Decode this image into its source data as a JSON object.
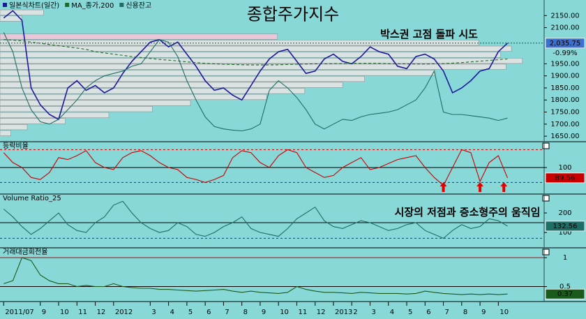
{
  "chart_data": [
    {
      "type": "line",
      "title": "종합주가지수",
      "annotation": "박스권 고점 돌파 시도",
      "x": [
        0,
        0.5,
        1,
        1.5,
        2,
        2.5,
        3,
        3.5,
        4,
        4.5,
        5,
        5.5,
        6,
        6.5,
        7,
        7.5,
        8,
        8.5,
        9,
        9.5,
        10,
        10.5,
        11,
        11.5,
        12,
        12.5,
        13,
        13.5,
        14,
        14.5,
        15,
        15.5,
        16,
        16.5,
        17,
        17.5,
        18,
        18.5,
        19,
        19.5,
        20,
        20.5,
        21,
        21.5,
        22,
        22.5,
        23,
        23.5,
        24,
        24.5,
        25,
        25.5,
        26,
        26.5,
        27,
        27.5
      ],
      "xlim": [
        -0.2,
        29.5
      ],
      "ylim": [
        1630,
        2200
      ],
      "yticks": [
        {
          "value": 2150,
          "label": "2150.00"
        },
        {
          "value": 2100,
          "label": "2100.00"
        },
        {
          "value": 1950,
          "label": "1950.00"
        },
        {
          "value": 1900,
          "label": "1900.00"
        },
        {
          "value": 1850,
          "label": "1850.00"
        },
        {
          "value": 1800,
          "label": "1800.00"
        },
        {
          "value": 1750,
          "label": "1750.00"
        },
        {
          "value": 1700,
          "label": "1700.00"
        },
        {
          "value": 1650,
          "label": "1650.00"
        }
      ],
      "series": [
        {
          "name": "일본식차트(일간)",
          "color": "#1a1a9a",
          "last_label": "2,035.75",
          "change_label": "-0.99%",
          "values": [
            2140,
            2170,
            2130,
            1850,
            1780,
            1740,
            1720,
            1850,
            1880,
            1840,
            1860,
            1830,
            1850,
            1910,
            1960,
            2000,
            2040,
            2050,
            2020,
            2040,
            1990,
            1940,
            1880,
            1840,
            1850,
            1820,
            1800,
            1860,
            1920,
            1970,
            2000,
            2010,
            1960,
            1910,
            1920,
            1970,
            1990,
            1960,
            1950,
            1980,
            2020,
            2000,
            1990,
            1940,
            1930,
            1980,
            1990,
            1970,
            1920,
            1830,
            1850,
            1880,
            1920,
            1930,
            2000,
            2035.75
          ]
        },
        {
          "name": "MA_종가,200",
          "color": "#1f6b2a",
          "dash": true,
          "values": [
            2050,
            2048,
            2045,
            2040,
            2035,
            2030,
            2025,
            2020,
            2015,
            2010,
            2000,
            1995,
            1990,
            1985,
            1980,
            1976,
            1972,
            1968,
            1965,
            1962,
            1958,
            1955,
            1952,
            1950,
            1948,
            1947,
            1946,
            1945,
            1945,
            1945,
            1946,
            1947,
            1948,
            1949,
            1950,
            1950,
            1951,
            1951,
            1952,
            1952,
            1952,
            1952,
            1951,
            1950,
            1950,
            1949,
            1949,
            1950,
            1951,
            1953,
            1955,
            1958,
            1961,
            1964,
            1967,
            1970
          ]
        },
        {
          "name": "신용잔고",
          "color": "#1e6e66",
          "values": [
            2080,
            2000,
            1850,
            1760,
            1710,
            1700,
            1720,
            1760,
            1800,
            1850,
            1880,
            1900,
            1910,
            1920,
            1940,
            1950,
            2000,
            2050,
            2040,
            1980,
            1880,
            1800,
            1730,
            1690,
            1680,
            1675,
            1672,
            1680,
            1700,
            1840,
            1880,
            1850,
            1810,
            1760,
            1700,
            1680,
            1700,
            1720,
            1715,
            1730,
            1740,
            1745,
            1750,
            1760,
            1780,
            1800,
            1850,
            1920,
            1750,
            1740,
            1740,
            1735,
            1730,
            1725,
            1715,
            1725
          ]
        }
      ],
      "volume_profile": {
        "bins": [
          1650,
          1675,
          1700,
          1725,
          1750,
          1775,
          1800,
          1825,
          1850,
          1875,
          1900,
          1925,
          1950,
          1975,
          2000,
          2025,
          2050,
          2075,
          2100,
          2125,
          2150,
          2175
        ],
        "values": [
          2,
          5,
          12,
          20,
          28,
          35,
          49,
          56,
          63,
          67,
          80,
          93,
          96,
          92,
          94,
          88,
          51,
          0,
          0,
          4,
          8
        ],
        "color": "#e4e4e4",
        "highlight_index": 16,
        "highlight_color": "#f6c4d8"
      }
    },
    {
      "type": "line",
      "title": "등락비율",
      "x": [
        0,
        0.5,
        1,
        1.5,
        2,
        2.5,
        3,
        3.5,
        4,
        4.5,
        5,
        5.5,
        6,
        6.5,
        7,
        7.5,
        8,
        8.5,
        9,
        9.5,
        10,
        10.5,
        11,
        11.5,
        12,
        12.5,
        13,
        13.5,
        14,
        14.5,
        15,
        15.5,
        16,
        16.5,
        17,
        17.5,
        18,
        18.5,
        19,
        19.5,
        20,
        20.5,
        21,
        21.5,
        22,
        22.5,
        23,
        23.5,
        24,
        24.5,
        25,
        25.5,
        26,
        26.5,
        27,
        27.5
      ],
      "xlim": [
        -0.2,
        29.5
      ],
      "ylim": [
        74,
        119
      ],
      "yticks": [
        100
      ],
      "hlines": [
        {
          "value": 118,
          "color": "#c00000",
          "dash": true
        },
        {
          "value": 100,
          "color": "#000000",
          "dash": false
        },
        {
          "value": 85,
          "color": "#1030d0",
          "dash": true
        }
      ],
      "arrows": [
        24,
        26,
        27.3
      ],
      "series": [
        {
          "name": "등락비율",
          "color": "#c80000",
          "last_label": "89.56",
          "values": [
            115,
            105,
            100,
            90,
            88,
            95,
            110,
            108,
            112,
            117,
            105,
            100,
            98,
            110,
            115,
            117,
            112,
            105,
            100,
            98,
            90,
            88,
            85,
            88,
            92,
            110,
            117,
            115,
            105,
            100,
            112,
            118,
            115,
            100,
            95,
            90,
            92,
            100,
            105,
            110,
            98,
            100,
            104,
            108,
            110,
            112,
            100,
            90,
            82,
            100,
            118,
            115,
            86,
            105,
            112,
            89.56
          ]
        }
      ]
    },
    {
      "type": "line",
      "title": "Volume Ratio_25",
      "annotation": "시장의 저점과 증소형주의 움직임",
      "x": [
        0,
        0.5,
        1,
        1.5,
        2,
        2.5,
        3,
        3.5,
        4,
        4.5,
        5,
        5.5,
        6,
        6.5,
        7,
        7.5,
        8,
        8.5,
        9,
        9.5,
        10,
        10.5,
        11,
        11.5,
        12,
        12.5,
        13,
        13.5,
        14,
        14.5,
        15,
        15.5,
        16,
        16.5,
        17,
        17.5,
        18,
        18.5,
        19,
        19.5,
        20,
        20.5,
        21,
        21.5,
        22,
        22.5,
        23,
        23.5,
        24,
        24.5,
        25,
        25.5,
        26,
        26.5,
        27,
        27.5
      ],
      "xlim": [
        -0.2,
        29.5
      ],
      "ylim": [
        25,
        261
      ],
      "yticks": [
        200,
        100
      ],
      "hlines": [
        {
          "value": 150,
          "color": "#000000",
          "dash": false
        },
        {
          "value": 70,
          "color": "#1030d0",
          "dash": true
        }
      ],
      "series": [
        {
          "name": "Volume Ratio_25",
          "color": "#1e6e66",
          "last_label": "132.56",
          "values": [
            220,
            180,
            130,
            90,
            120,
            160,
            200,
            140,
            110,
            100,
            150,
            180,
            240,
            260,
            200,
            150,
            120,
            100,
            110,
            150,
            130,
            90,
            80,
            100,
            130,
            150,
            180,
            120,
            100,
            90,
            80,
            120,
            170,
            200,
            230,
            160,
            130,
            120,
            140,
            160,
            150,
            130,
            110,
            120,
            140,
            150,
            110,
            90,
            70,
            110,
            140,
            120,
            130,
            170,
            160,
            132.56
          ]
        }
      ]
    },
    {
      "type": "line",
      "title": "거래대금회전율",
      "x": [
        0,
        0.5,
        1,
        1.5,
        2,
        2.5,
        3,
        3.5,
        4,
        4.5,
        5,
        5.5,
        6,
        6.5,
        7,
        7.5,
        8,
        8.5,
        9,
        9.5,
        10,
        10.5,
        11,
        11.5,
        12,
        12.5,
        13,
        13.5,
        14,
        14.5,
        15,
        15.5,
        16,
        16.5,
        17,
        17.5,
        18,
        18.5,
        19,
        19.5,
        20,
        20.5,
        21,
        21.5,
        22,
        22.5,
        23,
        23.5,
        24,
        24.5,
        25,
        25.5,
        26,
        26.5,
        27,
        27.5
      ],
      "xlim": [
        -0.2,
        29.5
      ],
      "ylim": [
        0.24,
        1.05
      ],
      "yticks": [
        1,
        0.5
      ],
      "hlines": [
        {
          "value": 1,
          "color": "#c00000",
          "dash": false
        },
        {
          "value": 0.5,
          "color": "#000000",
          "dash": false
        }
      ],
      "xticks": [
        {
          "value": 0,
          "label": "2011/07"
        },
        {
          "value": 2,
          "label": "9"
        },
        {
          "value": 3,
          "label": "10"
        },
        {
          "value": 4,
          "label": "11"
        },
        {
          "value": 5,
          "label": "12"
        },
        {
          "value": 6,
          "label": "2012"
        },
        {
          "value": 8,
          "label": "3"
        },
        {
          "value": 9,
          "label": "4"
        },
        {
          "value": 10,
          "label": "5"
        },
        {
          "value": 11,
          "label": "6"
        },
        {
          "value": 12,
          "label": "7"
        },
        {
          "value": 13,
          "label": "8"
        },
        {
          "value": 14,
          "label": "9"
        },
        {
          "value": 15,
          "label": "10"
        },
        {
          "value": 16,
          "label": "11"
        },
        {
          "value": 17,
          "label": "12"
        },
        {
          "value": 18,
          "label": "2013"
        },
        {
          "value": 19,
          "label": "2"
        },
        {
          "value": 20,
          "label": "3"
        },
        {
          "value": 21,
          "label": "4"
        },
        {
          "value": 22,
          "label": "5"
        },
        {
          "value": 23,
          "label": "6"
        },
        {
          "value": 24,
          "label": "7"
        },
        {
          "value": 25,
          "label": "8"
        },
        {
          "value": 26,
          "label": "9"
        },
        {
          "value": 27,
          "label": "10"
        }
      ],
      "series": [
        {
          "name": "거래대금회전율",
          "color": "#1a5a1a",
          "last_label": "0.37",
          "values": [
            0.55,
            0.6,
            1.0,
            0.95,
            0.7,
            0.6,
            0.55,
            0.55,
            0.5,
            0.52,
            0.5,
            0.5,
            0.55,
            0.5,
            0.48,
            0.47,
            0.47,
            0.45,
            0.45,
            0.44,
            0.43,
            0.42,
            0.43,
            0.44,
            0.45,
            0.42,
            0.4,
            0.42,
            0.4,
            0.39,
            0.38,
            0.4,
            0.5,
            0.45,
            0.42,
            0.4,
            0.4,
            0.39,
            0.38,
            0.4,
            0.39,
            0.38,
            0.38,
            0.38,
            0.37,
            0.38,
            0.42,
            0.4,
            0.38,
            0.37,
            0.36,
            0.37,
            0.36,
            0.37,
            0.36,
            0.37
          ]
        }
      ]
    }
  ]
}
